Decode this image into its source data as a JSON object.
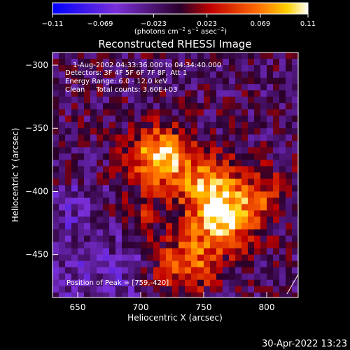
{
  "colorbar": {
    "ticks": [
      "-0.11",
      "-0.069",
      "-0.023",
      "0.023",
      "0.069",
      "0.11"
    ],
    "units_prefix": "(photons cm",
    "units_exp1": "−2",
    "units_mid1": " s",
    "units_exp2": "−1",
    "units_mid2": " asec",
    "units_exp3": "−2",
    "units_suffix": ")",
    "range": [
      -0.11,
      0.11
    ]
  },
  "title": "Reconstructed RHESSI Image",
  "annotations": {
    "time": "1-Aug-2002 04:33:36.000 to 04:34:40.000",
    "detectors": "Detectors: 3F 4F 5F 6F 7F 8F, Att 1",
    "energy": "Energy Range: 6.0 - 12.0 keV",
    "clean": "Clean     Total counts: 3.60E+03",
    "peak": "Position of Peak = [759,-420]"
  },
  "footer_timestamp": "30-Apr-2022 13:23",
  "chart_data": {
    "type": "heatmap",
    "title": "Reconstructed RHESSI Image",
    "xlabel": "Heliocentric X (arcsec)",
    "ylabel": "Heliocentric Y (arcsec)",
    "xlim": [
      630,
      825
    ],
    "ylim": [
      -290,
      -484
    ],
    "x_ticks": [
      650,
      700,
      750,
      800
    ],
    "y_ticks": [
      -300,
      -350,
      -400,
      -450
    ],
    "x_tick_labels": [
      "650",
      "700",
      "750",
      "800"
    ],
    "y_tick_labels": [
      "−300",
      "−350",
      "−400",
      "−450"
    ],
    "peak": [
      759,
      -420
    ],
    "sources": [
      {
        "x": 713,
        "y": -370,
        "amp": 0.11
      },
      {
        "x": 748,
        "y": -392,
        "amp": 0.08
      },
      {
        "x": 762,
        "y": -420,
        "amp": 0.11
      },
      {
        "x": 735,
        "y": -455,
        "amp": 0.075
      },
      {
        "x": 790,
        "y": -400,
        "amp": 0.05
      },
      {
        "x": 690,
        "y": -410,
        "amp": 0.04
      }
    ],
    "colormap": "rhessi_red_temperature",
    "grid": false
  }
}
